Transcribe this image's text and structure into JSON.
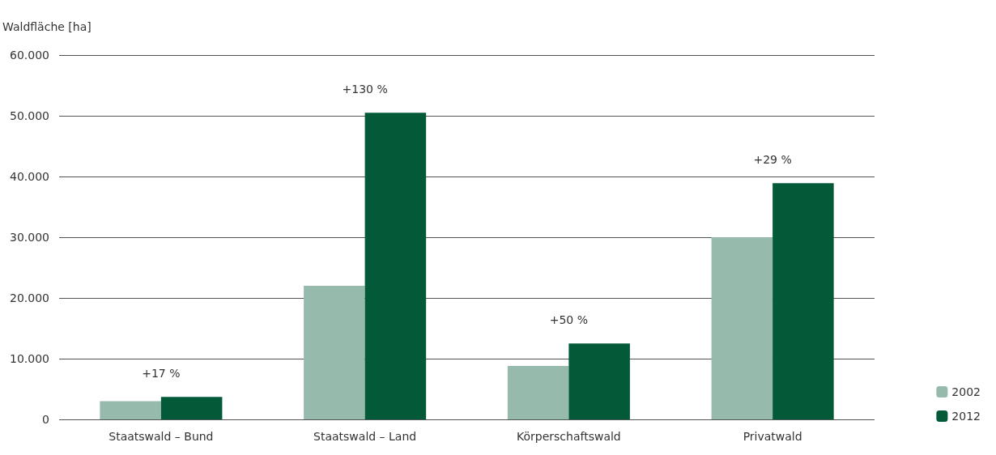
{
  "chart_data": {
    "type": "bar",
    "ylabel": "Waldfläche [ha]",
    "categories": [
      "Staatswald – Bund",
      "Staatswald – Land",
      "Körperschaftswald",
      "Privatwald"
    ],
    "series": [
      {
        "name": "2002",
        "color": "#96bbad",
        "values": [
          3000,
          22000,
          8800,
          30000
        ]
      },
      {
        "name": "2012",
        "color": "#035a38",
        "values": [
          3700,
          50500,
          12500,
          38900
        ]
      }
    ],
    "ylim": [
      0,
      60000
    ],
    "yticks": [
      {
        "value": 0,
        "label": "0"
      },
      {
        "value": 10000,
        "label": "10.000"
      },
      {
        "value": 20000,
        "label": "20.000"
      },
      {
        "value": 30000,
        "label": "30.000"
      },
      {
        "value": 40000,
        "label": "40.000"
      },
      {
        "value": 50000,
        "label": "50.000"
      },
      {
        "value": 60000,
        "label": "60.000"
      }
    ],
    "annotations": [
      {
        "text": "+17 %",
        "x": "Staatswald – Bund",
        "y": 3700
      },
      {
        "text": "+130 %",
        "x": "Staatswald – Land",
        "y": 50500
      },
      {
        "text": "+50 %",
        "x": "Körperschaftswald",
        "y": 12500
      },
      {
        "text": "+29 %",
        "x": "Privatwald",
        "y": 38900
      }
    ],
    "grid": "y",
    "legend": "bottom right"
  }
}
